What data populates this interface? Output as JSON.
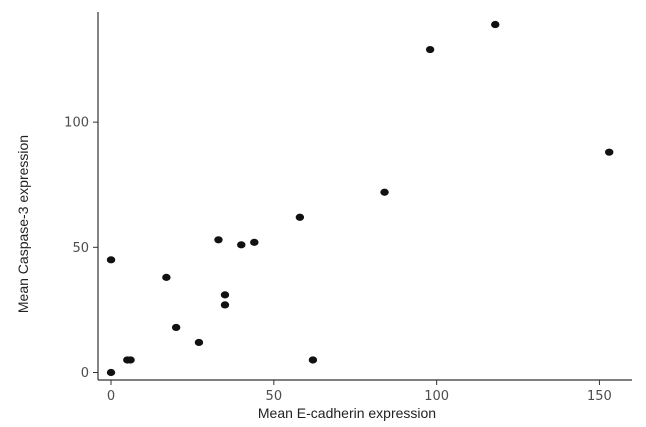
{
  "chart_data": {
    "type": "scatter",
    "xlabel": "Mean E-cadherin expression",
    "ylabel": "Mean Caspase-3 expression",
    "xlim": [
      -4,
      160
    ],
    "ylim": [
      -3,
      144
    ],
    "x_ticks": [
      0,
      50,
      100,
      150
    ],
    "y_ticks": [
      0,
      50,
      100
    ],
    "grid": false,
    "point_color": "#111111",
    "points": [
      {
        "x": 0,
        "y": 0
      },
      {
        "x": 0,
        "y": 45
      },
      {
        "x": 5,
        "y": 5
      },
      {
        "x": 6,
        "y": 5
      },
      {
        "x": 17,
        "y": 38
      },
      {
        "x": 20,
        "y": 18
      },
      {
        "x": 27,
        "y": 12
      },
      {
        "x": 33,
        "y": 53
      },
      {
        "x": 35,
        "y": 31
      },
      {
        "x": 35,
        "y": 27
      },
      {
        "x": 40,
        "y": 51
      },
      {
        "x": 44,
        "y": 52
      },
      {
        "x": 58,
        "y": 62
      },
      {
        "x": 62,
        "y": 5
      },
      {
        "x": 84,
        "y": 72
      },
      {
        "x": 98,
        "y": 129
      },
      {
        "x": 118,
        "y": 139
      },
      {
        "x": 153,
        "y": 88
      }
    ]
  }
}
